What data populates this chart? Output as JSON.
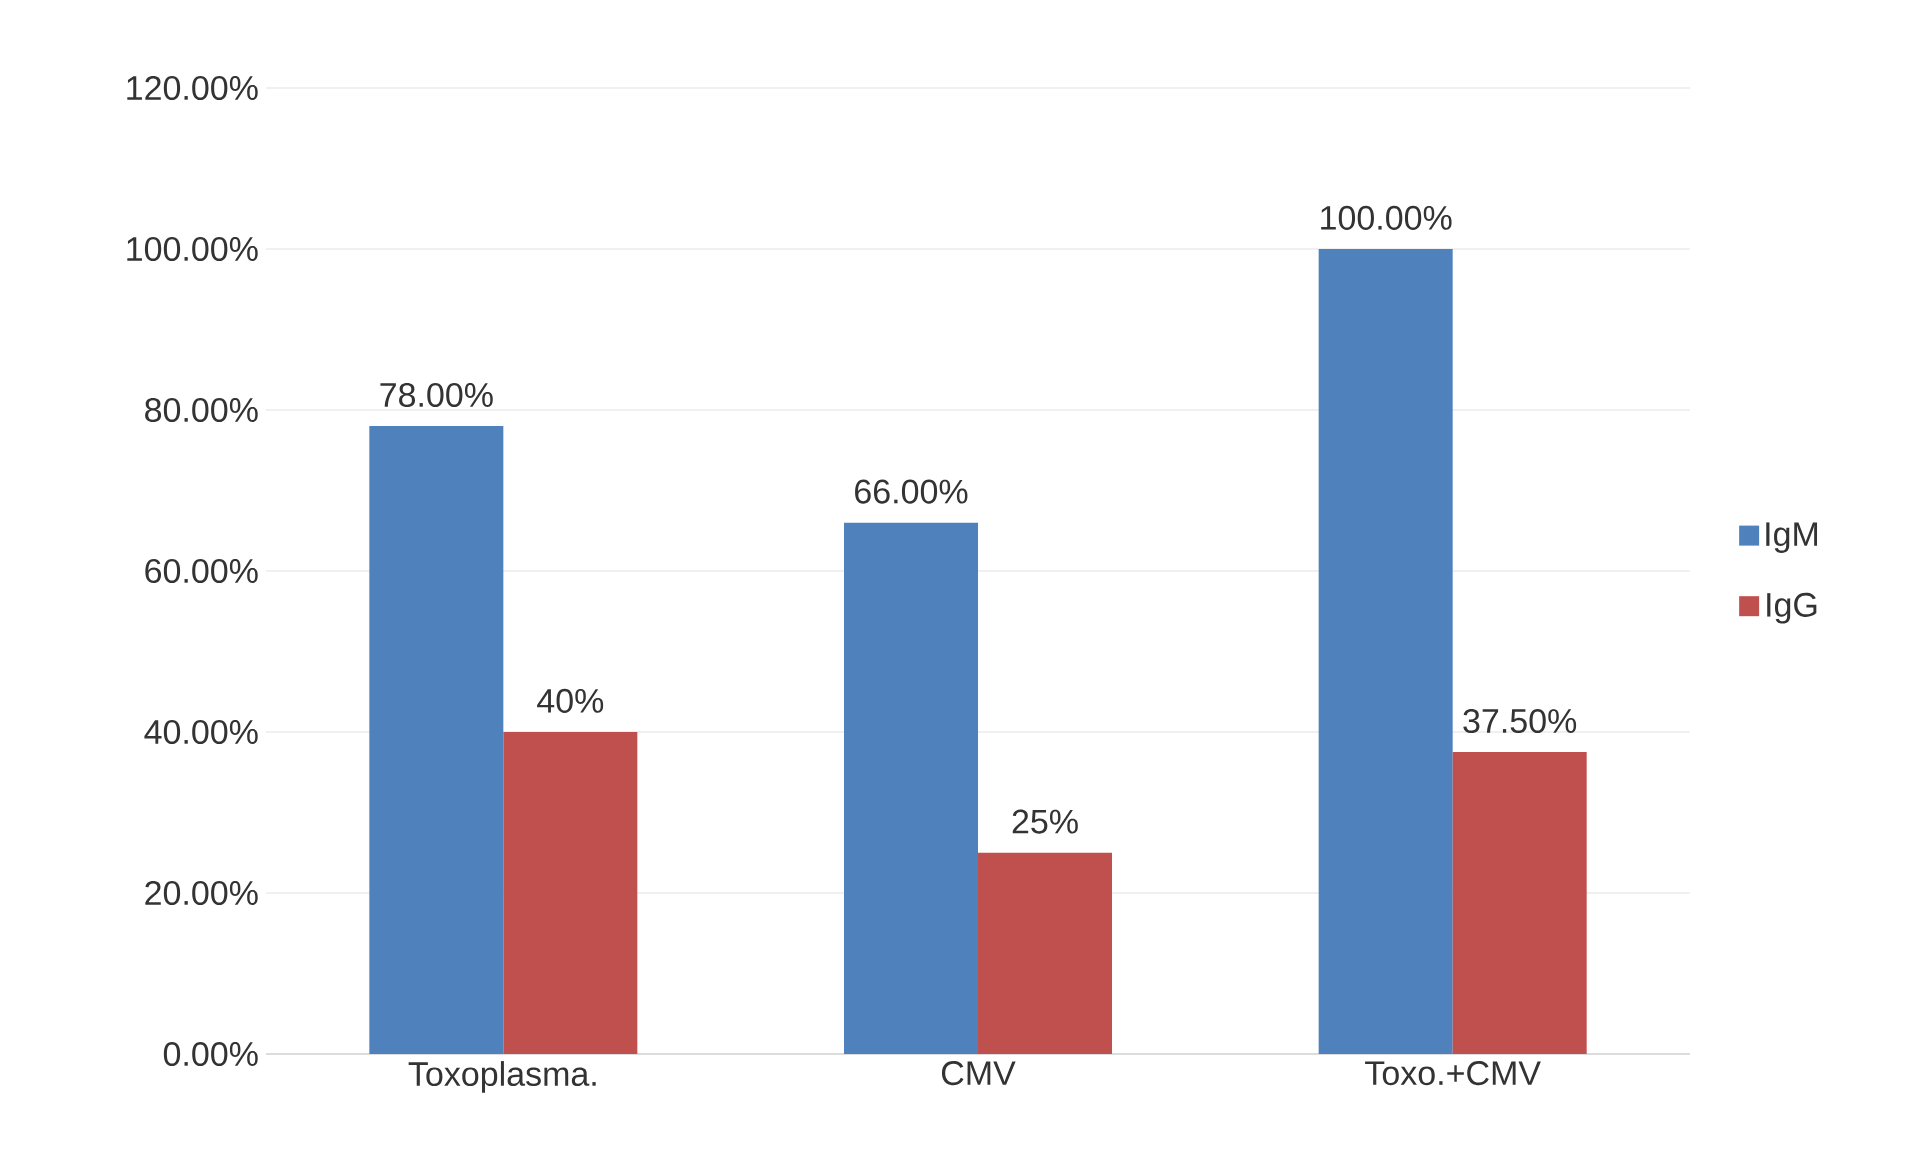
{
  "chart_data": {
    "type": "bar",
    "categories": [
      "Toxoplasma.",
      "CMV",
      "Toxo.+CMV"
    ],
    "series": [
      {
        "name": "IgM",
        "color": "#4f81bd",
        "values": [
          78,
          66,
          100
        ],
        "value_labels": [
          "78.00%",
          "66.00%",
          "100.00%"
        ]
      },
      {
        "name": "IgG",
        "color": "#c0504d",
        "values": [
          40,
          25,
          37.5
        ],
        "value_labels": [
          "40%",
          "25%",
          "37.50%"
        ]
      }
    ],
    "ylim": [
      0,
      120
    ],
    "yticks": [
      {
        "value": 0,
        "label": "0.00%"
      },
      {
        "value": 20,
        "label": "20.00%"
      },
      {
        "value": 40,
        "label": "40.00%"
      },
      {
        "value": 60,
        "label": "60.00%"
      },
      {
        "value": 80,
        "label": "80.00%"
      },
      {
        "value": 100,
        "label": "100.00%"
      },
      {
        "value": 120,
        "label": "120.00%"
      }
    ],
    "grid": "y",
    "legend": "right"
  }
}
